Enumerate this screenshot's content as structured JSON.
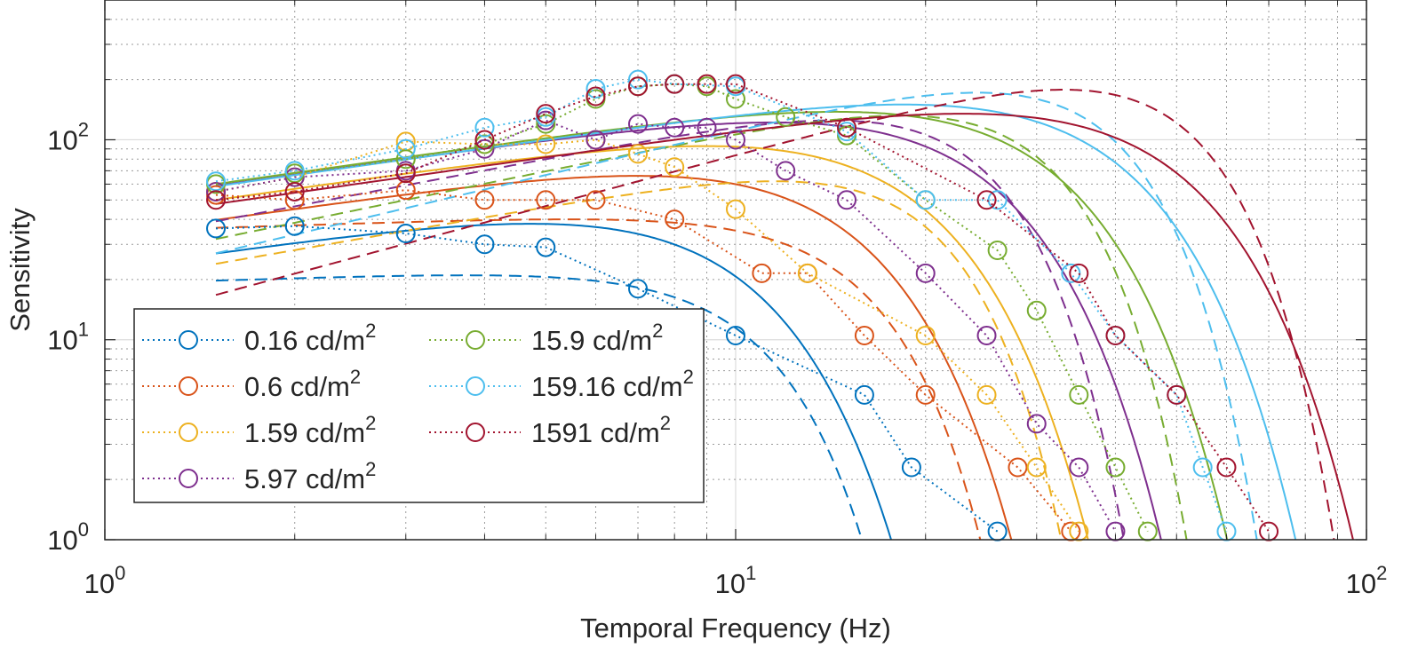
{
  "chart_data": {
    "type": "line",
    "title": "",
    "xlabel": "Temporal Frequency (Hz)",
    "ylabel": "Sensitivity",
    "xscale": "log",
    "yscale": "log",
    "xlim": [
      1,
      100
    ],
    "ylim": [
      1,
      500
    ],
    "grid": true,
    "x_ticks": [
      {
        "base": "10",
        "exp": "0",
        "value": 1
      },
      {
        "base": "10",
        "exp": "1",
        "value": 10
      },
      {
        "base": "10",
        "exp": "2",
        "value": 100
      }
    ],
    "y_ticks": [
      {
        "base": "10",
        "exp": "0",
        "value": 1
      },
      {
        "base": "10",
        "exp": "1",
        "value": 10
      },
      {
        "base": "10",
        "exp": "2",
        "value": 100
      }
    ],
    "legend_position": "bottom-left",
    "series": [
      {
        "name": "0.16 cd/m",
        "sup": "2",
        "color": "#0072BD",
        "x": [
          1.5,
          2,
          3,
          4,
          5,
          7,
          10,
          16,
          19,
          26
        ],
        "y": [
          36,
          37,
          34,
          30,
          29,
          18,
          10.5,
          5.3,
          2.3,
          1.1
        ],
        "fit_solid": {
          "peak": 38,
          "f0": 2.8,
          "fc": 9.5,
          "a": 0.45,
          "n": 2.4
        },
        "fit_dashed": {
          "peak": 21,
          "f0": 0.5,
          "fc": 11,
          "a": 0.1,
          "n": 3.2
        }
      },
      {
        "name": "0.6 cd/m",
        "sup": "2",
        "color": "#D95319",
        "x": [
          1.5,
          2,
          3,
          4,
          5,
          6,
          8,
          11,
          13,
          16,
          20,
          28,
          34
        ],
        "y": [
          53,
          50,
          56,
          50,
          50,
          50,
          40,
          21.5,
          21.5,
          10.5,
          5.3,
          2.3,
          1.1
        ],
        "fit_solid": {
          "peak": 66,
          "f0": 4,
          "fc": 14,
          "a": 0.45,
          "n": 2.4
        },
        "fit_dashed": {
          "peak": 40,
          "f0": 0.5,
          "fc": 16,
          "a": 0.1,
          "n": 3.2
        }
      },
      {
        "name": "1.59 cd/m",
        "sup": "2",
        "color": "#EDB120",
        "x": [
          1.5,
          2,
          3,
          4,
          5,
          6,
          7,
          8,
          10,
          13,
          20,
          25,
          30,
          35
        ],
        "y": [
          55,
          65,
          98,
          95,
          95,
          100,
          85,
          73,
          45,
          21.5,
          10.5,
          5.3,
          2.3,
          1.1
        ],
        "fit_solid": {
          "peak": 93,
          "f0": 4.6,
          "fc": 18,
          "a": 0.45,
          "n": 2.4
        },
        "fit_dashed": {
          "peak": 62,
          "f0": 1.5,
          "fc": 20,
          "a": 0.55,
          "n": 3.2
        }
      },
      {
        "name": "5.97 cd/m",
        "sup": "2",
        "color": "#7E2F8E",
        "x": [
          1.5,
          2,
          3,
          4,
          5,
          6,
          7,
          8,
          9,
          10,
          12,
          15,
          20,
          25,
          30,
          35,
          40
        ],
        "y": [
          55,
          65,
          70,
          90,
          125,
          100,
          120,
          115,
          115,
          100,
          70,
          50,
          21.5,
          10.5,
          3.8,
          2.3,
          1.1
        ],
        "fit_solid": {
          "peak": 122,
          "f0": 5,
          "fc": 23,
          "a": 0.45,
          "n": 2.4
        },
        "fit_dashed": {
          "peak": 125,
          "f0": 3.8,
          "fc": 24,
          "a": 0.6,
          "n": 3.2
        }
      },
      {
        "name": "15.9 cd/m",
        "sup": "2",
        "color": "#77AC30",
        "x": [
          1.5,
          2,
          3,
          4,
          5,
          6,
          7,
          8,
          9,
          10,
          12,
          15,
          20,
          26,
          30,
          35,
          40,
          45
        ],
        "y": [
          60,
          68,
          80,
          95,
          120,
          160,
          185,
          190,
          185,
          160,
          130,
          105,
          50,
          28,
          14,
          5.3,
          2.3,
          1.1
        ],
        "fit_solid": {
          "peak": 138,
          "f0": 6,
          "fc": 29,
          "a": 0.45,
          "n": 2.4
        },
        "fit_dashed": {
          "peak": 132,
          "f0": 5,
          "fc": 30,
          "a": 0.65,
          "n": 3.2
        }
      },
      {
        "name": "159.16 cd/m",
        "sup": "2",
        "color": "#4DBEEE",
        "x": [
          1.5,
          2,
          3,
          4,
          5,
          6,
          7,
          8,
          10,
          15,
          20,
          26,
          34,
          40,
          50,
          55,
          60
        ],
        "y": [
          62,
          70,
          90,
          115,
          130,
          180,
          200,
          190,
          185,
          110,
          50,
          50,
          21.5,
          10.5,
          5.3,
          2.3,
          1.1
        ],
        "fit_solid": {
          "peak": 150,
          "f0": 7,
          "fc": 37,
          "a": 0.45,
          "n": 2.4
        },
        "fit_dashed": {
          "peak": 172,
          "f0": 7,
          "fc": 38,
          "a": 0.75,
          "n": 3.2
        }
      },
      {
        "name": "1591 cd/m",
        "sup": "2",
        "color": "#A2142F",
        "x": [
          1.5,
          2,
          3,
          4,
          5,
          6,
          7,
          8,
          9,
          10,
          15,
          25,
          35,
          40,
          50,
          60,
          70
        ],
        "y": [
          50,
          55,
          68,
          100,
          135,
          165,
          185,
          190,
          190,
          190,
          115,
          50,
          21.5,
          10.5,
          5.3,
          2.3,
          1.1
        ],
        "fit_solid": {
          "peak": 135,
          "f0": 8,
          "fc": 46,
          "a": 0.45,
          "n": 2.4
        },
        "fit_dashed": {
          "peak": 178,
          "f0": 11,
          "fc": 50,
          "a": 0.85,
          "n": 3.2
        }
      }
    ]
  }
}
